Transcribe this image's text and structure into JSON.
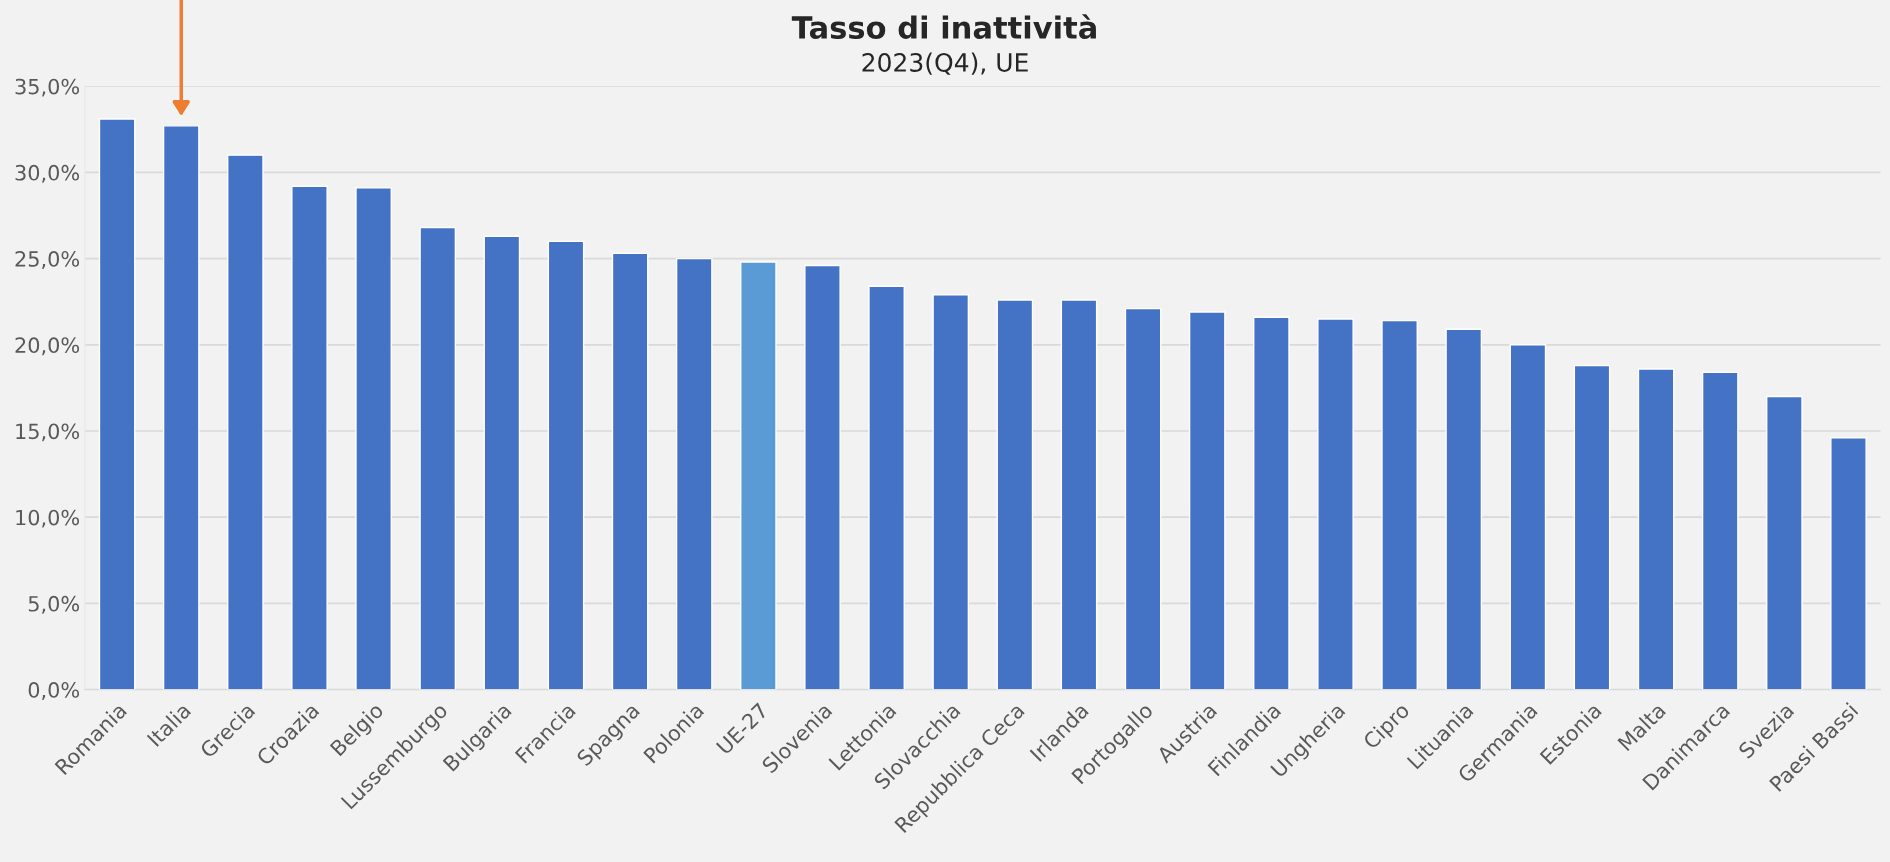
{
  "chart_data": {
    "type": "bar",
    "title": "Tasso di inattività",
    "subtitle": "2023(Q4), UE",
    "categories": [
      "Romania",
      "Italia",
      "Grecia",
      "Croazia",
      "Belgio",
      "Lussemburgo",
      "Bulgaria",
      "Francia",
      "Spagna",
      "Polonia",
      "UE-27",
      "Slovenia",
      "Lettonia",
      "Slovacchia",
      "Repubblica Ceca",
      "Irlanda",
      "Portogallo",
      "Austria",
      "Finlandia",
      "Ungheria",
      "Cipro",
      "Lituania",
      "Germania",
      "Estonia",
      "Malta",
      "Danimarca",
      "Svezia",
      "Paesi Bassi"
    ],
    "values": [
      33.1,
      32.7,
      31.0,
      29.2,
      29.1,
      26.8,
      26.3,
      26.0,
      25.3,
      25.0,
      24.8,
      24.6,
      23.4,
      22.9,
      22.6,
      22.6,
      22.1,
      21.9,
      21.6,
      21.5,
      21.4,
      20.9,
      20.0,
      18.8,
      18.6,
      18.4,
      17.0,
      14.6
    ],
    "colors": [
      "#4472c4",
      "#4472c4",
      "#4472c4",
      "#4472c4",
      "#4472c4",
      "#4472c4",
      "#4472c4",
      "#4472c4",
      "#4472c4",
      "#4472c4",
      "#5b9bd5",
      "#4472c4",
      "#4472c4",
      "#4472c4",
      "#4472c4",
      "#4472c4",
      "#4472c4",
      "#4472c4",
      "#4472c4",
      "#4472c4",
      "#4472c4",
      "#4472c4",
      "#4472c4",
      "#4472c4",
      "#4472c4",
      "#4472c4",
      "#4472c4",
      "#4472c4"
    ],
    "ylim": [
      0,
      35
    ],
    "yticks": [
      {
        "value": 0,
        "label": "0,0%"
      },
      {
        "value": 5,
        "label": "5,0%"
      },
      {
        "value": 10,
        "label": "10,0%"
      },
      {
        "value": 15,
        "label": "15,0%"
      },
      {
        "value": 20,
        "label": "20,0%"
      },
      {
        "value": 25,
        "label": "25,0%"
      },
      {
        "value": 30,
        "label": "30,0%"
      },
      {
        "value": 35,
        "label": "35,0%"
      }
    ],
    "grid": "y"
  }
}
